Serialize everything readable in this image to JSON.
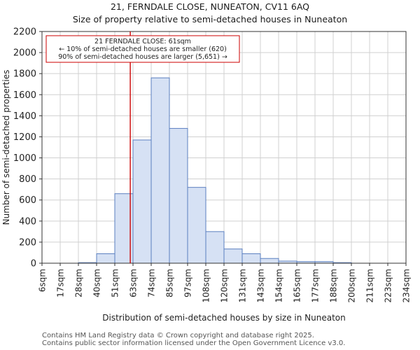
{
  "chart_data": {
    "type": "histogram",
    "title": "21, FERNDALE CLOSE, NUNEATON, CV11 6AQ",
    "subtitle": "Size of property relative to semi-detached houses in Nuneaton",
    "xlabel": "Distribution of semi-detached houses by size in Nuneaton",
    "ylabel": "Number of semi-detached properties",
    "ylim": [
      0,
      2200
    ],
    "yticks": [
      0,
      200,
      400,
      600,
      800,
      1000,
      1200,
      1400,
      1600,
      1800,
      2000,
      2200
    ],
    "categories": [
      "6sqm",
      "17sqm",
      "28sqm",
      "40sqm",
      "51sqm",
      "63sqm",
      "74sqm",
      "85sqm",
      "97sqm",
      "108sqm",
      "120sqm",
      "131sqm",
      "143sqm",
      "154sqm",
      "165sqm",
      "177sqm",
      "188sqm",
      "200sqm",
      "211sqm",
      "223sqm",
      "234sqm"
    ],
    "values": [
      0,
      0,
      5,
      90,
      660,
      1170,
      1760,
      1280,
      720,
      300,
      135,
      90,
      45,
      20,
      15,
      15,
      5,
      0,
      0,
      0
    ],
    "marker": {
      "value_index": 4.85,
      "color": "#cc0000",
      "lines": [
        "21 FERNDALE CLOSE: 61sqm",
        "← 10% of semi-detached houses are smaller (620)",
        "90% of semi-detached houses are larger (5,651) →"
      ]
    },
    "bar_fill": "#d6e1f4",
    "bar_stroke": "#5b7fbf"
  },
  "footer": {
    "line1": "Contains HM Land Registry data © Crown copyright and database right 2025.",
    "line2": "Contains public sector information licensed under the Open Government Licence v3.0."
  }
}
